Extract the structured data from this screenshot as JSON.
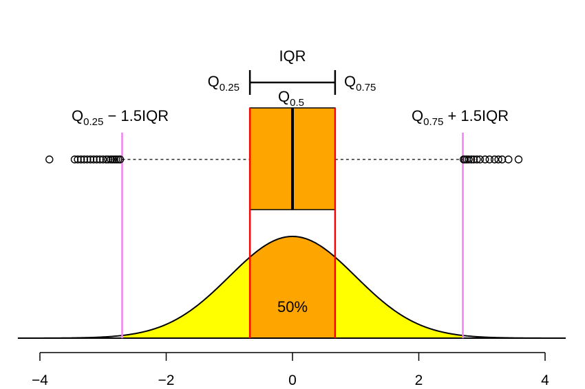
{
  "chart_data": {
    "type": "boxplot-with-density",
    "x_axis": {
      "xlim": [
        -4,
        4
      ],
      "ticks": [
        -4,
        -2,
        0,
        2,
        4
      ],
      "tick_labels": [
        "−4",
        "−2",
        "0",
        "2",
        "4"
      ]
    },
    "distribution": "standard normal",
    "quartiles": {
      "q25": -0.6745,
      "median": 0,
      "q75": 0.6745
    },
    "whiskers": {
      "lower": -2.698,
      "upper": 2.698
    },
    "outliers": [
      -3.85,
      -3.45,
      -3.4,
      -3.35,
      -3.3,
      -3.25,
      -3.2,
      -3.15,
      -3.1,
      -3.05,
      -3.0,
      -2.95,
      -2.92,
      -2.88,
      -2.85,
      -2.82,
      -2.79,
      -2.76,
      -2.73,
      2.71,
      2.73,
      2.76,
      2.79,
      2.83,
      2.87,
      2.92,
      2.97,
      3.05,
      3.12,
      3.2,
      3.26,
      3.32,
      3.42,
      3.58
    ],
    "central_area_label": "50%",
    "colors": {
      "box_fill": "#ffa500",
      "tail_fill": "#ffff00",
      "quartile_lines": "#ff0000",
      "whisker_limit_lines": "#ee82ee",
      "curve": "#000000"
    }
  },
  "labels": {
    "iqr": "IQR",
    "q25_main": "Q",
    "q25_sub": "0.25",
    "q75_main": "Q",
    "q75_sub": "0.75",
    "median_main": "Q",
    "median_sub": "0.5",
    "lower_fence_main": "Q",
    "lower_fence_sub": "0.25",
    "lower_fence_tail": " − 1.5IQR",
    "upper_fence_main": "Q",
    "upper_fence_sub": "0.75",
    "upper_fence_tail": " + 1.5IQR"
  }
}
